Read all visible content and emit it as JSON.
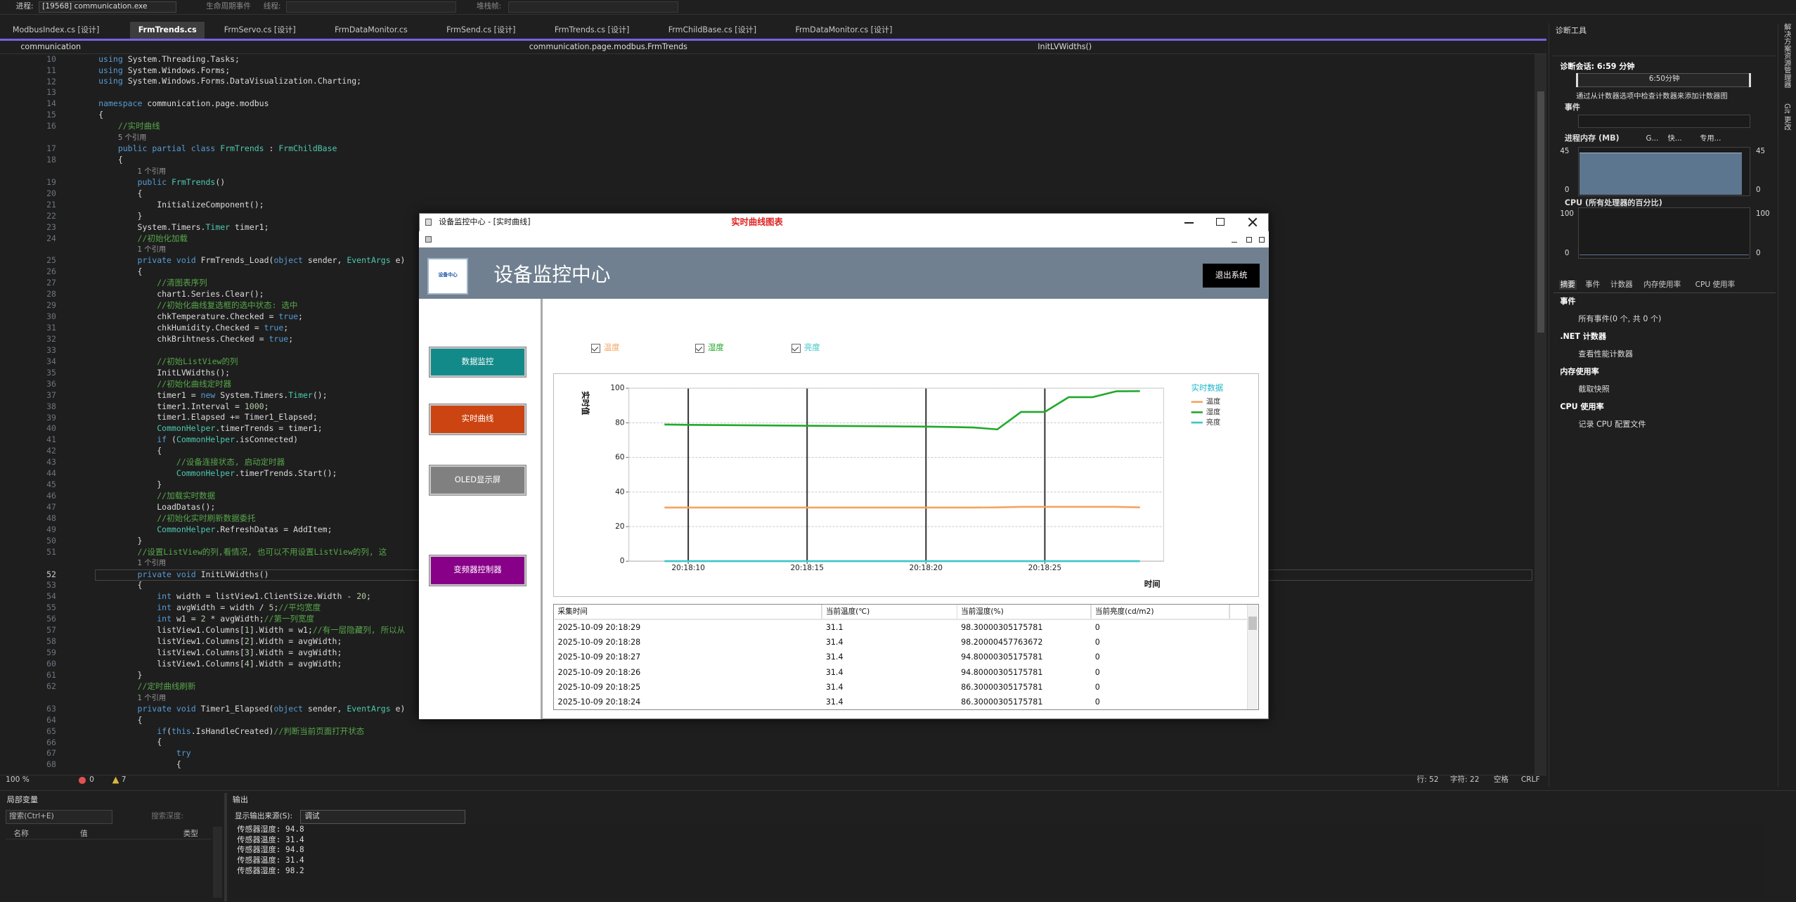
{
  "top_bar": {
    "process_label": "进程:",
    "process": "[19568] communication.exe",
    "lifecycle": "生命周期事件",
    "thread": "线程:",
    "stack": "堆栈帧:"
  },
  "tabs": [
    "ModbusIndex.cs [设计]",
    "FrmTrends.cs",
    "FrmServo.cs [设计]",
    "FrmDataMonitor.cs",
    "FrmSend.cs [设计]",
    "FrmTrends.cs [设计]",
    "FrmChildBase.cs [设计]",
    "FrmDataMonitor.cs [设计]"
  ],
  "nav": {
    "project": "communication",
    "class": "communication.page.modbus.FrmTrends",
    "member": "InitLVWidths()"
  },
  "code": [
    {
      "line": 10,
      "text": "using System.Threading.Tasks;"
    },
    {
      "line": 11,
      "text": "using System.Windows.Forms;"
    },
    {
      "line": 12,
      "text": "using System.Windows.Forms.DataVisualization.Charting;"
    },
    {
      "line": 13
    },
    {
      "line": 14,
      "text": "namespace communication.page.modbus"
    },
    {
      "line": 15,
      "text": "{"
    },
    {
      "line": 16,
      "text": "    //实时曲线"
    },
    {
      "refs": "5 个引用"
    },
    {
      "line": 17,
      "text": "    public partial class FrmTrends : FrmChildBase"
    },
    {
      "line": 18,
      "text": "    {"
    },
    {
      "refs": "1 个引用"
    },
    {
      "line": 19,
      "text": "        public FrmTrends()"
    },
    {
      "line": 20,
      "text": "        {"
    },
    {
      "line": 21,
      "text": "            InitializeComponent();"
    },
    {
      "line": 22,
      "text": "        }"
    },
    {
      "line": 23,
      "text": "        System.Timers.Timer timer1;"
    },
    {
      "line": 24,
      "text": "        //初始化加载"
    },
    {
      "refs": "1 个引用"
    },
    {
      "line": 25,
      "text": "        private void FrmTrends_Load(object sender, EventArgs e)"
    },
    {
      "line": 26,
      "text": "        {"
    },
    {
      "line": 27,
      "text": "            //清图表序列"
    },
    {
      "line": 28,
      "text": "            chart1.Series.Clear();"
    },
    {
      "line": 29,
      "text": "            //初始化曲线复选框的选中状态: 选中"
    },
    {
      "line": 30,
      "text": "            chkTemperature.Checked = true;"
    },
    {
      "line": 31,
      "text": "            chkHumidity.Checked = true;"
    },
    {
      "line": 32,
      "text": "            chkBrihtness.Checked = true;"
    },
    {
      "line": 33
    },
    {
      "line": 34,
      "text": "            //初始ListView的列"
    },
    {
      "line": 35,
      "text": "            InitLVWidths();"
    },
    {
      "line": 36,
      "text": "            //初始化曲线定时器"
    },
    {
      "line": 37,
      "text": "            timer1 = new System.Timers.Timer();"
    },
    {
      "line": 38,
      "text": "            timer1.Interval = 1000;"
    },
    {
      "line": 39,
      "text": "            timer1.Elapsed += Timer1_Elapsed;"
    },
    {
      "line": 40,
      "text": "            CommonHelper.timerTrends = timer1;"
    },
    {
      "line": 41,
      "text": "            if (CommonHelper.isConnected)"
    },
    {
      "line": 42,
      "text": "            {"
    },
    {
      "line": 43,
      "text": "                //设备连接状态, 启动定时器"
    },
    {
      "line": 44,
      "text": "                CommonHelper.timerTrends.Start();"
    },
    {
      "line": 45,
      "text": "            }"
    },
    {
      "line": 46,
      "text": "            //加载实时数据"
    },
    {
      "line": 47,
      "text": "            LoadDatas();"
    },
    {
      "line": 48,
      "text": "            //初始化实时刷新数据委托"
    },
    {
      "line": 49,
      "text": "            CommonHelper.RefreshDatas = AddItem;"
    },
    {
      "line": 50,
      "text": "        }"
    },
    {
      "line": 51,
      "text": "        //设置ListView的列,看情况, 也可以不用设置ListView的列, 这"
    },
    {
      "refs": "1 个引用"
    },
    {
      "line": 52,
      "text": "        private void InitLVWidths()"
    },
    {
      "line": 53,
      "text": "        {"
    },
    {
      "line": 54,
      "text": "            int width = listView1.ClientSize.Width - 20;"
    },
    {
      "line": 55,
      "text": "            int avgWidth = width / 5;//平均宽度"
    },
    {
      "line": 56,
      "text": "            int w1 = 2 * avgWidth;//第一列宽度"
    },
    {
      "line": 57,
      "text": "            listView1.Columns[1].Width = w1;//有一层隐藏列, 所以从"
    },
    {
      "line": 58,
      "text": "            listView1.Columns[2].Width = avgWidth;"
    },
    {
      "line": 59,
      "text": "            listView1.Columns[3].Width = avgWidth;"
    },
    {
      "line": 60,
      "text": "            listView1.Columns[4].Width = avgWidth;"
    },
    {
      "line": 61,
      "text": "        }"
    },
    {
      "line": 62,
      "text": "        //定时曲线刷新"
    },
    {
      "refs": "1 个引用"
    },
    {
      "line": 63,
      "text": "        private void Timer1_Elapsed(object sender, EventArgs e)"
    },
    {
      "line": 64,
      "text": "        {"
    },
    {
      "line": 65,
      "text": "            if(this.IsHandleCreated)//判断当前页面打开状态"
    },
    {
      "line": 66,
      "text": "            {"
    },
    {
      "line": 67,
      "text": "                try"
    },
    {
      "line": 68,
      "text": "                {"
    }
  ],
  "status": {
    "zoom": "100 %",
    "errors": "0",
    "warnings": "7",
    "line": "行: 52",
    "char": "字符: 22",
    "indent": "空格",
    "eol": "CRLF"
  },
  "side_tabs": [
    "解决方案资源管理器",
    "Git 更改"
  ],
  "diagnostics": {
    "title": "诊断工具",
    "session": "诊断会话: 6:59 分钟",
    "timeline": "6:50分钟",
    "hint": "通过从计数器选项中检查计数器来添加计数器图",
    "events": "事件",
    "memory_title": "进程内存 (MB)",
    "memory_legend": [
      "G...",
      "快...",
      "专用..."
    ],
    "memory_axis": [
      "45",
      "0",
      "45",
      "0"
    ],
    "cpu_title": "CPU (所有处理器的百分比)",
    "cpu_axis": [
      "100",
      "0",
      "100",
      "0"
    ],
    "tabs": [
      "摘要",
      "事件",
      "计数器",
      "内存使用率",
      "CPU 使用率"
    ],
    "summary": [
      {
        "heading": "事件",
        "item": "所有事件(0 个, 共 0 个)"
      },
      {
        "heading": ".NET 计数器",
        "item": "查看性能计数器"
      },
      {
        "heading": "内存使用率",
        "item": "截取快照"
      },
      {
        "heading": "CPU 使用率",
        "item": "记录 CPU 配置文件"
      }
    ]
  },
  "locals": {
    "title": "局部变量",
    "search": "搜索(Ctrl+E)",
    "depth": "搜索深度:",
    "columns": [
      "名称",
      "值",
      "类型"
    ]
  },
  "output": {
    "title": "输出",
    "source_label": "显示输出来源(S):",
    "source": "调试",
    "lines": [
      "传感器湿度: 94.8",
      "传感器温度: 31.4",
      "传感器湿度: 94.8",
      "传感器温度: 31.4",
      "传感器湿度: 98.2"
    ]
  },
  "app_window": {
    "title": "设备监控中心 - [实时曲线]",
    "caption": "实时曲线图表",
    "header": "设备监控中心",
    "logo": "设备中心",
    "exit": "退出系统",
    "menu": [
      "数据监控",
      "实时曲线",
      "OLED显示屏",
      "变频器控制器"
    ],
    "table": {
      "columns": [
        "采集时间",
        "当前温度(℃)",
        "当前湿度(%)",
        "当前亮度(cd/m2)"
      ],
      "rows": [
        [
          "2025-10-09 20:18:29",
          "31.1",
          "98.30000305175781",
          "0"
        ],
        [
          "2025-10-09 20:18:28",
          "31.4",
          "98.20000457763672",
          "0"
        ],
        [
          "2025-10-09 20:18:27",
          "31.4",
          "94.80000305175781",
          "0"
        ],
        [
          "2025-10-09 20:18:26",
          "31.4",
          "94.80000305175781",
          "0"
        ],
        [
          "2025-10-09 20:18:25",
          "31.4",
          "86.30000305175781",
          "0"
        ],
        [
          "2025-10-09 20:18:24",
          "31.4",
          "86.30000305175781",
          "0"
        ]
      ]
    }
  },
  "chart_data": {
    "type": "line",
    "y_label": "实时值",
    "x_label": "时间",
    "legend_title": "实时数据",
    "legend": "upper right",
    "grid": true,
    "x": [
      "20:18:09",
      "20:18:10",
      "20:18:11",
      "20:18:12",
      "20:18:13",
      "20:18:14",
      "20:18:15",
      "20:18:16",
      "20:18:17",
      "20:18:18",
      "20:18:19",
      "20:18:20",
      "20:18:21",
      "20:18:22",
      "20:18:23",
      "20:18:24",
      "20:18:25",
      "20:18:26",
      "20:18:27",
      "20:18:28",
      "20:18:29"
    ],
    "xlim": [
      "20:18:07.5",
      "20:18:30"
    ],
    "xticks": [
      "20:18:10",
      "20:18:15",
      "20:18:20",
      "20:18:25"
    ],
    "ylim": [
      0,
      100
    ],
    "yticks": [
      0,
      20,
      40,
      60,
      80,
      100
    ],
    "series": [
      {
        "name": "温度",
        "color": "#f4a460",
        "values": [
          31,
          31,
          31,
          31,
          31,
          31,
          31,
          31,
          31,
          31,
          31,
          31,
          31,
          31,
          31.1,
          31.4,
          31.4,
          31.4,
          31.4,
          31.4,
          31.1
        ]
      },
      {
        "name": "湿度",
        "color": "#22a82a",
        "values": [
          79,
          78.8,
          78.7,
          78.6,
          78.5,
          78.4,
          78.3,
          78.2,
          78.1,
          78,
          77.9,
          77.8,
          77.6,
          77.3,
          76.2,
          86.3,
          86.3,
          94.8,
          94.8,
          98.2,
          98.3
        ]
      },
      {
        "name": "亮度",
        "color": "#3cc7c7",
        "values": [
          0,
          0,
          0,
          0,
          0,
          0,
          0,
          0,
          0,
          0,
          0,
          0,
          0,
          0,
          0,
          0,
          0,
          0,
          0,
          0,
          0
        ]
      }
    ]
  }
}
